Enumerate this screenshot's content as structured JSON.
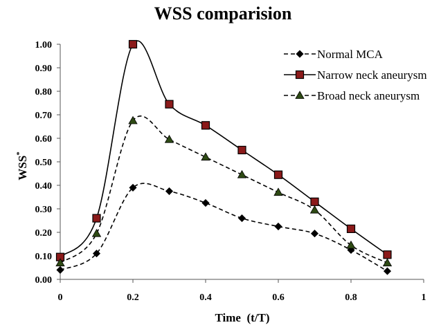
{
  "chart_data": {
    "type": "line",
    "title": "WSS comparision",
    "xlabel": "Time  (t/T)",
    "ylabel": "WSS",
    "ylabel_superscript": "*",
    "xlim": [
      0,
      1
    ],
    "ylim": [
      0,
      1
    ],
    "x_ticks": [
      0,
      0.2,
      0.4,
      0.6,
      0.8,
      1
    ],
    "x_tick_labels": [
      "0",
      "0.2",
      "0.4",
      "0.6",
      "0.8",
      "1"
    ],
    "y_ticks": [
      0,
      0.1,
      0.2,
      0.3,
      0.4,
      0.5,
      0.6,
      0.7,
      0.8,
      0.9,
      1.0
    ],
    "y_tick_labels": [
      "0.00",
      "0.10",
      "0.20",
      "0.30",
      "0.40",
      "0.50",
      "0.60",
      "0.70",
      "0.80",
      "0.90",
      "1.00"
    ],
    "grid": false,
    "legend_position": "top-right",
    "x": [
      0,
      0.1,
      0.2,
      0.3,
      0.4,
      0.5,
      0.6,
      0.7,
      0.8,
      0.9
    ],
    "series": [
      {
        "name": "Normal MCA",
        "values": [
          0.04,
          0.11,
          0.39,
          0.375,
          0.325,
          0.26,
          0.225,
          0.195,
          0.125,
          0.035
        ],
        "marker": "diamond",
        "line_style": "dashed",
        "marker_fill": "#000000",
        "line_color": "#000000"
      },
      {
        "name": "Narrow neck aneurysm",
        "values": [
          0.095,
          0.26,
          1.0,
          0.745,
          0.655,
          0.55,
          0.445,
          0.33,
          0.215,
          0.105
        ],
        "marker": "square",
        "line_style": "solid",
        "marker_fill": "#8b1a1a",
        "line_color": "#000000"
      },
      {
        "name": "Broad neck aneurysm",
        "values": [
          0.07,
          0.195,
          0.675,
          0.595,
          0.52,
          0.445,
          0.37,
          0.295,
          0.145,
          0.07
        ],
        "marker": "triangle",
        "line_style": "dashed",
        "marker_fill": "#2e4a14",
        "line_color": "#000000"
      }
    ]
  }
}
